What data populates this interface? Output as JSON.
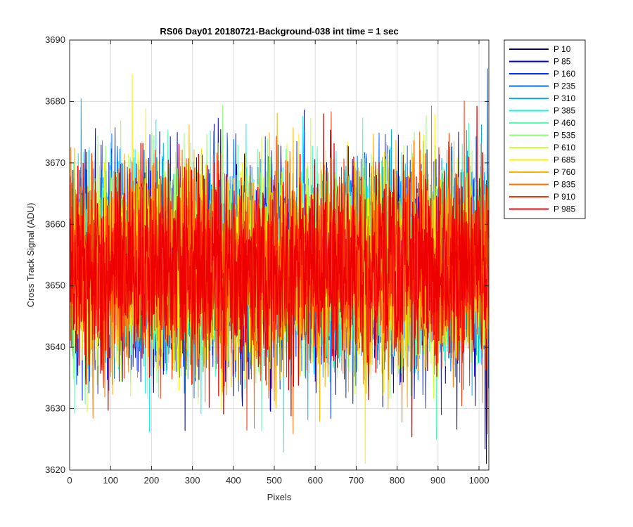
{
  "chart_data": {
    "type": "line",
    "title": "RS06 Day01 20180721-Background-038 int time = 1 sec",
    "xlabel": "Pixels",
    "ylabel": "Cross Track Signal (ADU)",
    "xlim": [
      0,
      1024
    ],
    "ylim": [
      3620,
      3690
    ],
    "xticks": [
      0,
      100,
      200,
      300,
      400,
      500,
      600,
      700,
      800,
      900,
      1000
    ],
    "yticks": [
      3620,
      3630,
      3640,
      3650,
      3660,
      3670,
      3680,
      3690
    ],
    "grid": true,
    "legend_position": "outside-top-right",
    "noise": {
      "n_points": 1024,
      "mean": 3653,
      "std": 8
    },
    "series": [
      {
        "name": "P 10",
        "color": "#00008f"
      },
      {
        "name": "P 85",
        "color": "#0000df"
      },
      {
        "name": "P 160",
        "color": "#0030ff"
      },
      {
        "name": "P 235",
        "color": "#0070ff"
      },
      {
        "name": "P 310",
        "color": "#00b0ff"
      },
      {
        "name": "P 385",
        "color": "#10f0ef"
      },
      {
        "name": "P 460",
        "color": "#50ffaf"
      },
      {
        "name": "P 535",
        "color": "#8fff70"
      },
      {
        "name": "P 610",
        "color": "#cfff30"
      },
      {
        "name": "P 685",
        "color": "#ffef00"
      },
      {
        "name": "P 760",
        "color": "#ffaf00"
      },
      {
        "name": "P 835",
        "color": "#ff7000"
      },
      {
        "name": "P 910",
        "color": "#ff3000"
      },
      {
        "name": "P 985",
        "color": "#ef0000"
      }
    ]
  }
}
